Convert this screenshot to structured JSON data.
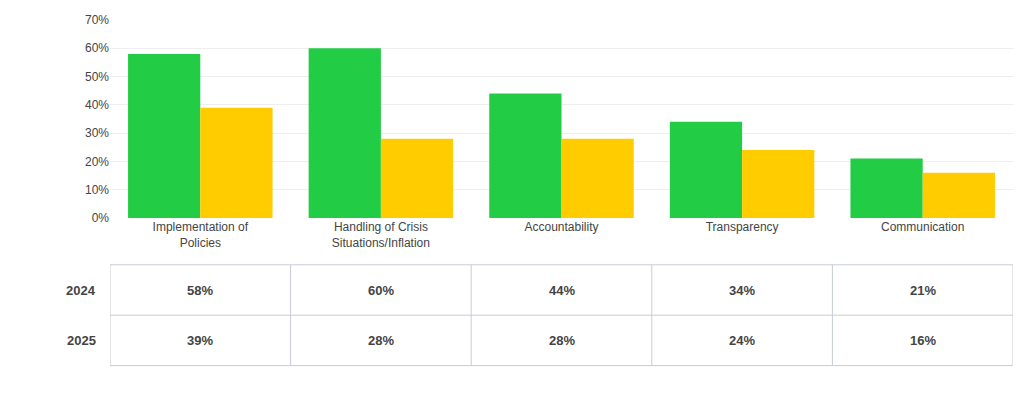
{
  "chart_data": {
    "type": "bar",
    "categories": [
      "Implementation of\nPolicies",
      "Handling of Crisis\nSituations/Inflation",
      "Accountability",
      "Transparency",
      "Communication"
    ],
    "series": [
      {
        "name": "2024",
        "color": "#22cc44",
        "values": [
          58,
          60,
          44,
          34,
          21
        ],
        "value_labels": [
          "58%",
          "60%",
          "44%",
          "34%",
          "21%"
        ]
      },
      {
        "name": "2025",
        "color": "#ffcc00",
        "values": [
          39,
          28,
          28,
          24,
          16
        ],
        "value_labels": [
          "39%",
          "28%",
          "28%",
          "24%",
          "16%"
        ]
      }
    ],
    "ylim": [
      0,
      70
    ],
    "yticks": [
      {
        "value": 0,
        "label": "0%"
      },
      {
        "value": 10,
        "label": "10%"
      },
      {
        "value": 20,
        "label": "20%"
      },
      {
        "value": 30,
        "label": "30%"
      },
      {
        "value": 40,
        "label": "40%"
      },
      {
        "value": 50,
        "label": "50%"
      },
      {
        "value": 60,
        "label": "60%"
      },
      {
        "value": 70,
        "label": "70%"
      }
    ],
    "grid": true
  }
}
